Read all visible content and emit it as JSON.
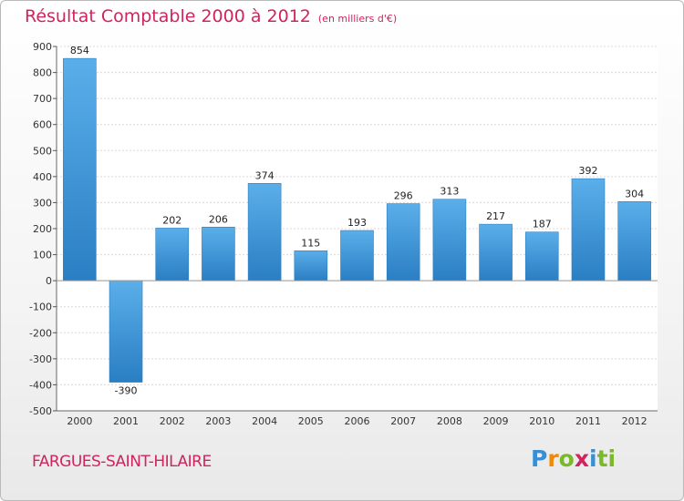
{
  "header": {
    "title": "Résultat Comptable 2000 à 2012",
    "subtitle": "(en milliers d'€)"
  },
  "footer": {
    "commune": "FARGUES-SAINT-HILAIRE",
    "logo_letters": [
      "P",
      "r",
      "o",
      "x",
      "i",
      "ti"
    ]
  },
  "colors": {
    "bar_top": "#5aafea",
    "bar_bottom": "#2a7ec3",
    "accent": "#d0245e"
  },
  "chart_data": {
    "type": "bar",
    "title": "Résultat Comptable 2000 à 2012",
    "subtitle": "(en milliers d'€)",
    "xlabel": "",
    "ylabel": "",
    "categories": [
      "2000",
      "2001",
      "2002",
      "2003",
      "2004",
      "2005",
      "2006",
      "2007",
      "2008",
      "2009",
      "2010",
      "2011",
      "2012"
    ],
    "values": [
      854,
      -390,
      202,
      206,
      374,
      115,
      193,
      296,
      313,
      217,
      187,
      392,
      304
    ],
    "ylim": [
      -500,
      900
    ],
    "yticks": [
      900,
      800,
      700,
      600,
      500,
      400,
      300,
      200,
      100,
      0,
      -100,
      -200,
      -300,
      -400,
      -500
    ],
    "ytick_labels": [
      "900",
      "800",
      "700",
      "600",
      "500",
      "400",
      "300",
      "200",
      "100",
      "0",
      "-100",
      "-200",
      "-300",
      "-400",
      "-500"
    ],
    "grid": "horizontal",
    "legend": "none"
  }
}
